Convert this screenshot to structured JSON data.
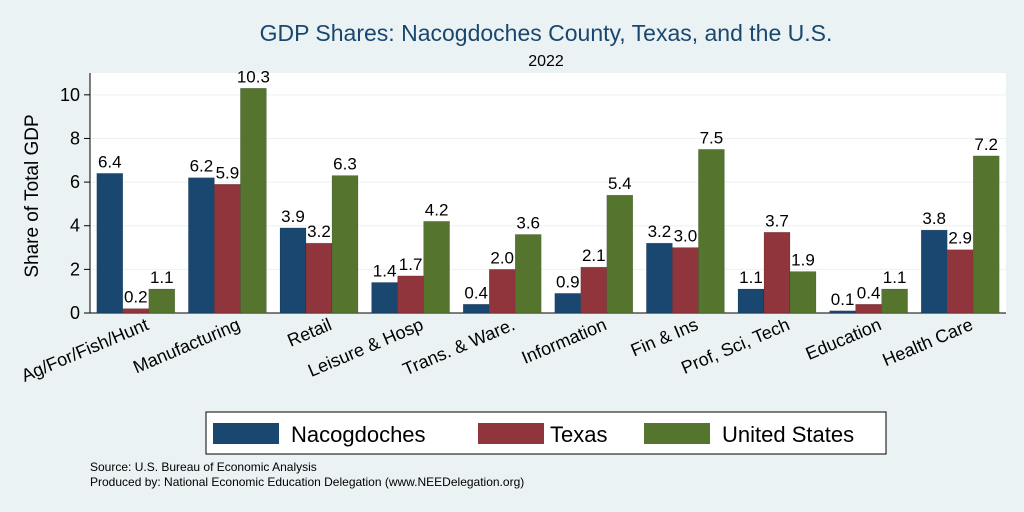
{
  "chart_data": {
    "type": "bar",
    "title": "GDP Shares: Nacogdoches County, Texas, and the U.S.",
    "subtitle": "2022",
    "xlabel": "",
    "ylabel": "Share of Total GDP",
    "ylim": [
      0,
      11
    ],
    "yticks": [
      0,
      2,
      4,
      6,
      8,
      10
    ],
    "grid": true,
    "legend_position": "bottom",
    "categories": [
      "Ag/For/Fish/Hunt",
      "Manufacturing",
      "Retail",
      "Leisure & Hosp",
      "Trans. & Ware.",
      "Information",
      "Fin & Ins",
      "Prof, Sci, Tech",
      "Education",
      "Health Care"
    ],
    "series": [
      {
        "name": "Nacogdoches",
        "color": "#1a476f",
        "values": [
          6.4,
          6.2,
          3.9,
          1.4,
          0.4,
          0.9,
          3.2,
          1.1,
          0.1,
          3.8
        ],
        "labels": [
          "6.4",
          "6.2",
          "3.9",
          "1.4",
          "0.4",
          "0.9",
          "3.2",
          "1.1",
          "0.1",
          "3.8"
        ]
      },
      {
        "name": "Texas",
        "color": "#90353b",
        "values": [
          0.2,
          5.9,
          3.2,
          1.7,
          2.0,
          2.1,
          3.0,
          3.7,
          0.4,
          2.9
        ],
        "labels": [
          "0.2",
          "5.9",
          "3.2",
          "1.7",
          "2.0",
          "2.1",
          "3.0",
          "3.7",
          "0.4",
          "2.9"
        ]
      },
      {
        "name": "United States",
        "color": "#55752f",
        "values": [
          1.1,
          10.3,
          6.3,
          4.2,
          3.6,
          5.4,
          7.5,
          1.9,
          1.1,
          7.2
        ],
        "labels": [
          "1.1",
          "10.3",
          "6.3",
          "4.2",
          "3.6",
          "5.4",
          "7.5",
          "1.9",
          "1.1",
          "7.2"
        ]
      }
    ]
  },
  "notes": {
    "source": "Source: U.S. Bureau of Economic Analysis",
    "produced_by": "Produced by: National Economic Education Delegation (www.NEEDelegation.org)"
  }
}
